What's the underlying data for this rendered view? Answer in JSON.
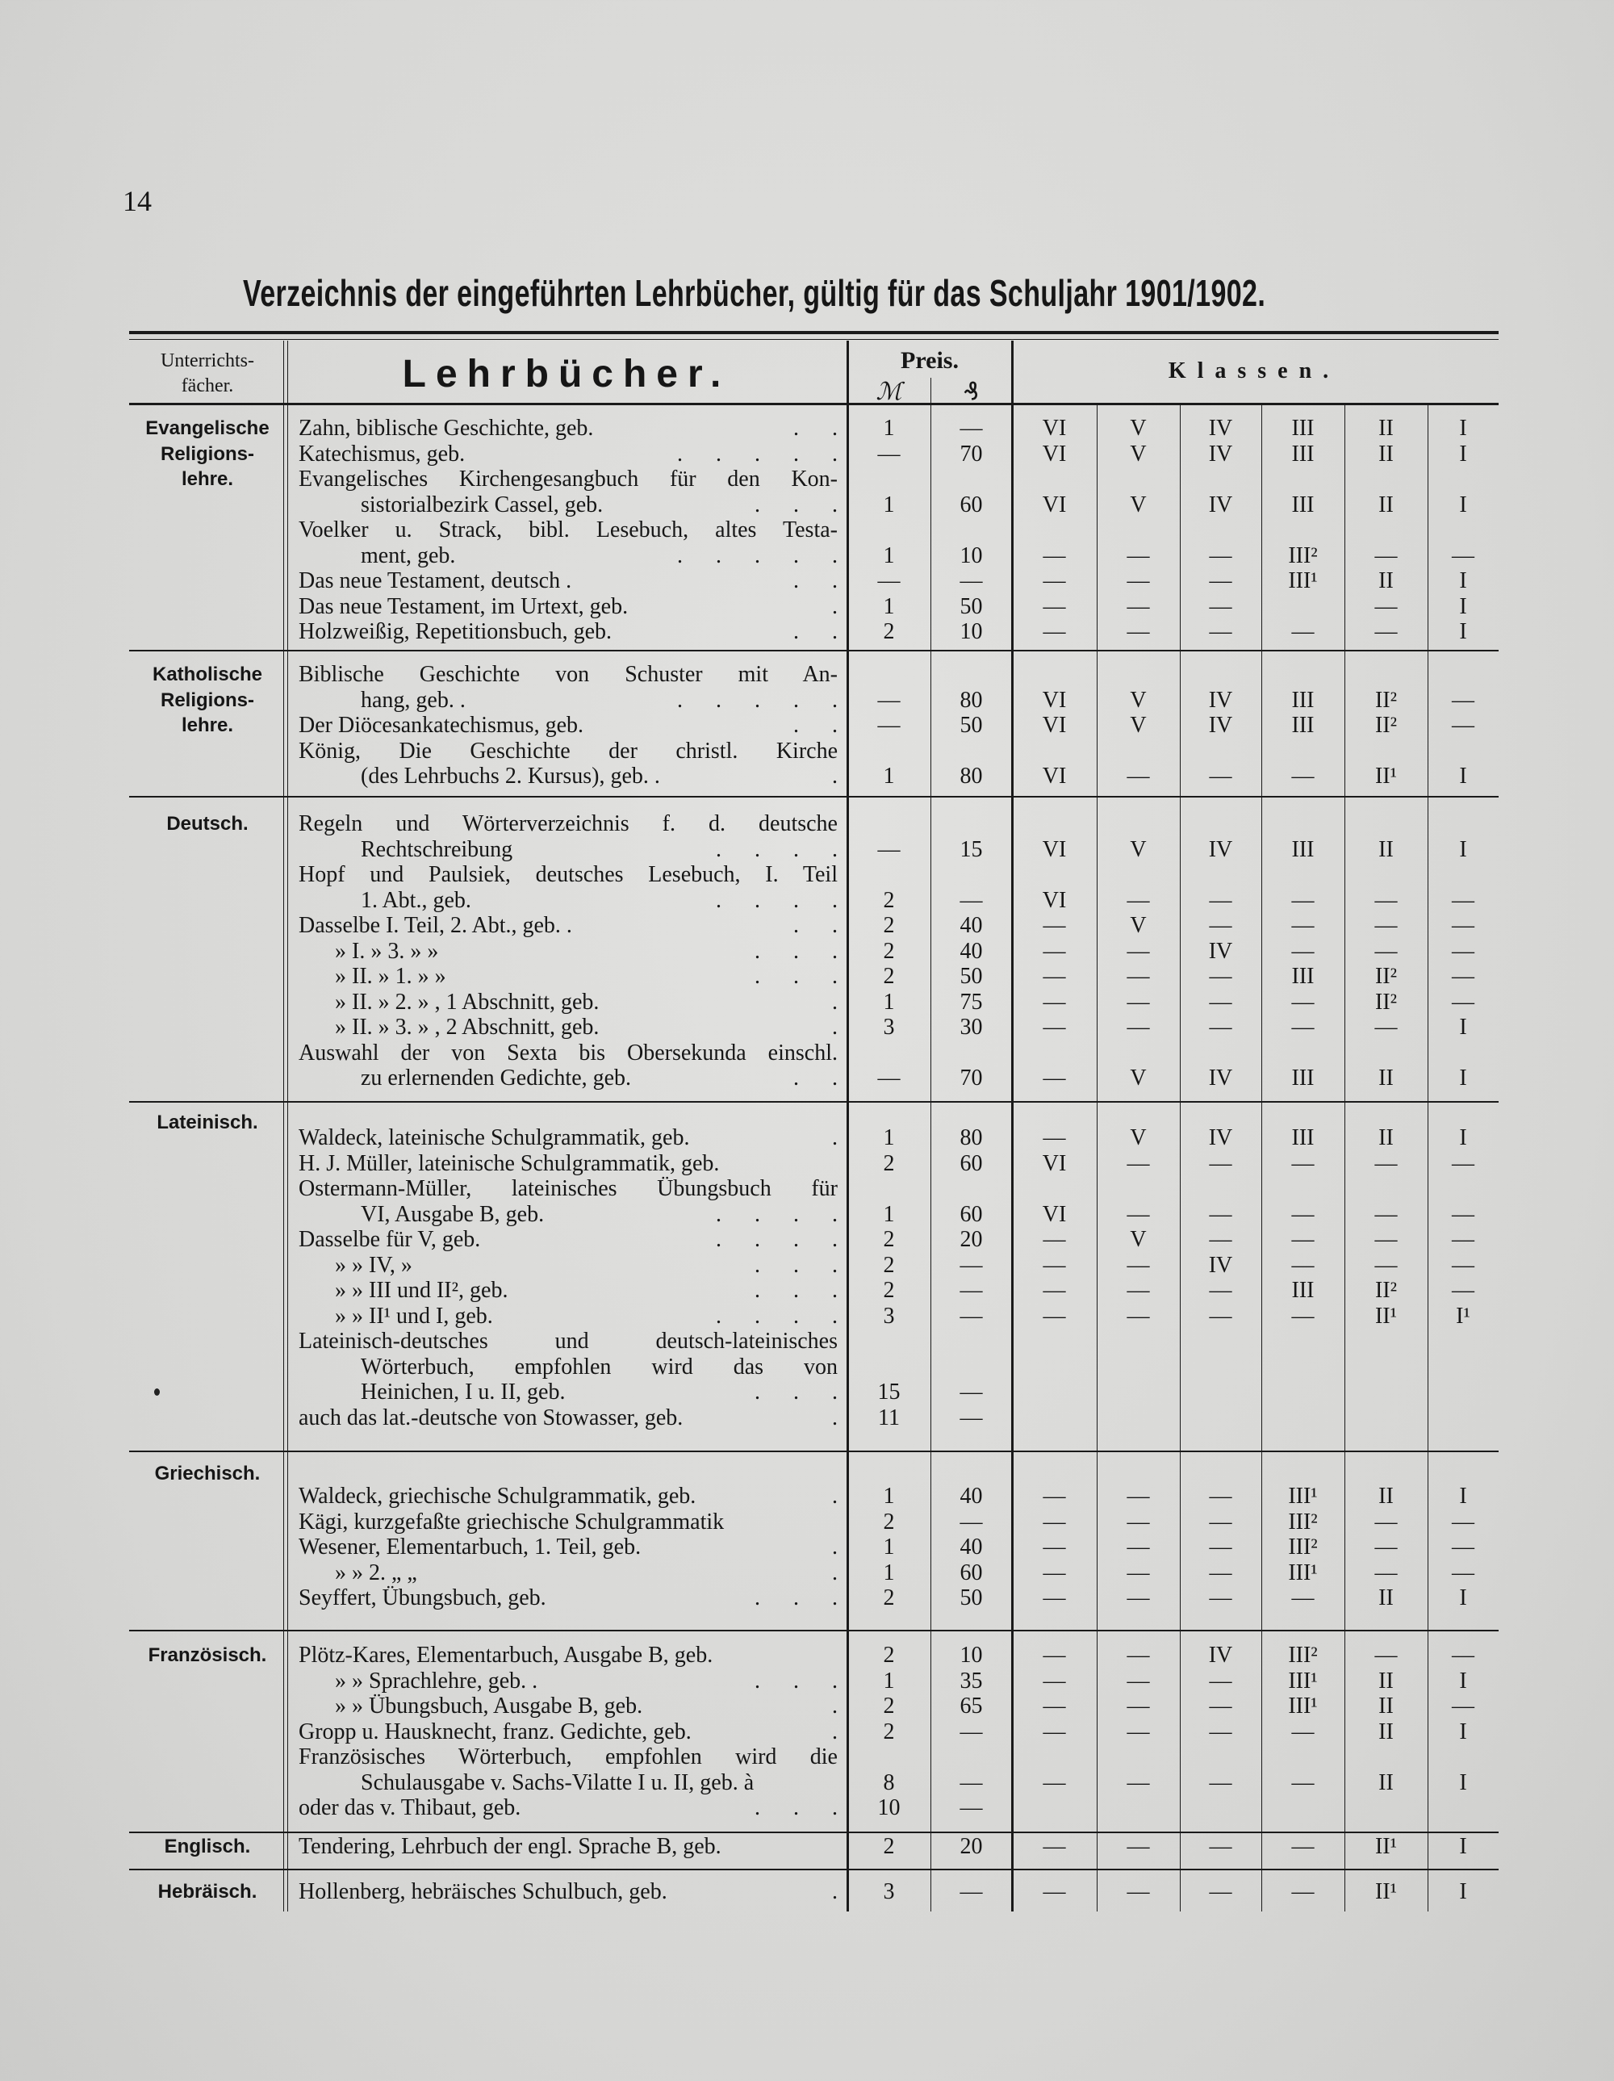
{
  "page_number": "14",
  "title": "Verzeichnis der eingeführten Lehrbücher, gültig für das Schuljahr 1901/1902.",
  "header": {
    "subject_label": [
      "Unterrichts-",
      "fächer."
    ],
    "books_label": "Lehrbücher.",
    "price_label": "Preis.",
    "mark_symbol": "ℳ",
    "pfennig_symbol": "₰",
    "classes_label": "Klassen."
  },
  "class_columns": [
    "VI",
    "V",
    "IV",
    "III",
    "II",
    "I"
  ],
  "sections": [
    {
      "subject": [
        "Evangelische",
        "Religions-",
        "lehre."
      ],
      "entries": [
        {
          "lines": [
            "Zahn, biblische Geschichte, geb."
          ],
          "leader": ". .",
          "mark": "1",
          "pf": "—",
          "classes": [
            "VI",
            "V",
            "IV",
            "III",
            "II",
            "I"
          ]
        },
        {
          "lines": [
            "Katechismus, geb."
          ],
          "leader": ". . . . .",
          "mark": "—",
          "pf": "70",
          "classes": [
            "VI",
            "V",
            "IV",
            "III",
            "II",
            "I"
          ]
        },
        {
          "lines": [
            "Evangelisches Kirchengesangbuch für den Kon-",
            "sistorialbezirk Cassel, geb."
          ],
          "leader": ". . .",
          "mark": "1",
          "pf": "60",
          "classes": [
            "VI",
            "V",
            "IV",
            "III",
            "II",
            "I"
          ]
        },
        {
          "lines": [
            "Voelker u. Strack, bibl. Lesebuch, altes Testa-",
            "ment, geb."
          ],
          "leader": ". . . . .",
          "mark": "1",
          "pf": "10",
          "classes": [
            "—",
            "—",
            "—",
            "III²",
            "—",
            "—"
          ]
        },
        {
          "lines": [
            "Das neue Testament, deutsch ."
          ],
          "leader": ". .",
          "mark": "—",
          "pf": "—",
          "classes": [
            "—",
            "—",
            "—",
            "III¹",
            "II",
            "I"
          ]
        },
        {
          "lines": [
            "Das neue Testament, im Urtext, geb."
          ],
          "leader": ".",
          "mark": "1",
          "pf": "50",
          "classes": [
            "—",
            "—",
            "—",
            "",
            "—",
            "I"
          ]
        },
        {
          "lines": [
            "Holzweißig, Repetitionsbuch, geb."
          ],
          "leader": ". .",
          "mark": "2",
          "pf": "10",
          "classes": [
            "—",
            "—",
            "—",
            "—",
            "—",
            "I"
          ]
        }
      ]
    },
    {
      "subject": [
        "Katholische",
        "Religions-",
        "lehre."
      ],
      "entries": [
        {
          "lines": [
            "Biblische Geschichte von Schuster mit An-",
            "hang, geb. ."
          ],
          "leader": ". . . . .",
          "mark": "—",
          "pf": "80",
          "classes": [
            "VI",
            "V",
            "IV",
            "III",
            "II²",
            "—"
          ]
        },
        {
          "lines": [
            "Der Diöcesankatechismus, geb."
          ],
          "leader": ". .",
          "mark": "—",
          "pf": "50",
          "classes": [
            "VI",
            "V",
            "IV",
            "III",
            "II²",
            "—"
          ]
        },
        {
          "lines": [
            "König, Die Geschichte der christl. Kirche",
            "(des Lehrbuchs 2. Kursus), geb. ."
          ],
          "leader": ".",
          "mark": "1",
          "pf": "80",
          "classes": [
            "VI",
            "—",
            "—",
            "—",
            "II¹",
            "I"
          ]
        }
      ]
    },
    {
      "subject": [
        "Deutsch."
      ],
      "entries": [
        {
          "lines": [
            "Regeln und Wörterverzeichnis f. d. deutsche",
            "Rechtschreibung"
          ],
          "leader": ". . . .",
          "mark": "—",
          "pf": "15",
          "classes": [
            "VI",
            "V",
            "IV",
            "III",
            "II",
            "I"
          ]
        },
        {
          "lines": [
            "Hopf und Paulsiek, deutsches Lesebuch, I. Teil",
            "1. Abt., geb."
          ],
          "leader": ". . . .",
          "mark": "2",
          "pf": "—",
          "classes": [
            "VI",
            "—",
            "—",
            "—",
            "—",
            "—"
          ]
        },
        {
          "lines": [
            "Dasselbe I. Teil, 2. Abt., geb. ."
          ],
          "leader": ". .",
          "mark": "2",
          "pf": "40",
          "classes": [
            "—",
            "V",
            "—",
            "—",
            "—",
            "—"
          ]
        },
        {
          "lines": [
            "»    I.   »   3.   »    »"
          ],
          "leader": ". . .",
          "mark": "2",
          "pf": "40",
          "classes": [
            "—",
            "—",
            "IV",
            "—",
            "—",
            "—"
          ]
        },
        {
          "lines": [
            "»    II.   »   1.   »    »"
          ],
          "leader": ". . .",
          "mark": "2",
          "pf": "50",
          "classes": [
            "—",
            "—",
            "—",
            "III",
            "II²",
            "—"
          ]
        },
        {
          "lines": [
            "»    II.   »   2.   » , 1 Abschnitt, geb."
          ],
          "leader": ".",
          "mark": "1",
          "pf": "75",
          "classes": [
            "—",
            "—",
            "—",
            "—",
            "II²",
            "—"
          ]
        },
        {
          "lines": [
            "»    II.   »   3.   » , 2 Abschnitt, geb."
          ],
          "leader": ".",
          "mark": "3",
          "pf": "30",
          "classes": [
            "—",
            "—",
            "—",
            "—",
            "—",
            "I"
          ]
        },
        {
          "lines": [
            "Auswahl der von Sexta bis Obersekunda einschl.",
            "zu erlernenden Gedichte, geb."
          ],
          "leader": ". .",
          "mark": "—",
          "pf": "70",
          "classes": [
            "—",
            "V",
            "IV",
            "III",
            "II",
            "I"
          ]
        }
      ]
    },
    {
      "subject": [
        "Lateinisch."
      ],
      "entries": [
        {
          "lines": [
            "Waldeck, lateinische Schulgrammatik, geb."
          ],
          "leader": ".",
          "mark": "1",
          "pf": "80",
          "classes": [
            "—",
            "V",
            "IV",
            "III",
            "II",
            "I"
          ]
        },
        {
          "lines": [
            "H. J. Müller, lateinische Schulgrammatik, geb."
          ],
          "leader": "",
          "mark": "2",
          "pf": "60",
          "classes": [
            "VI",
            "—",
            "—",
            "—",
            "—",
            "—"
          ]
        },
        {
          "lines": [
            "Ostermann-Müller, lateinisches Übungsbuch für",
            "VI, Ausgabe B, geb."
          ],
          "leader": ". . . .",
          "mark": "1",
          "pf": "60",
          "classes": [
            "VI",
            "—",
            "—",
            "—",
            "—",
            "—"
          ]
        },
        {
          "lines": [
            "Dasselbe für V, geb."
          ],
          "leader": ". . . .",
          "mark": "2",
          "pf": "20",
          "classes": [
            "—",
            "V",
            "—",
            "—",
            "—",
            "—"
          ]
        },
        {
          "lines": [
            "»       » IV,   »"
          ],
          "leader": ". . .",
          "mark": "2",
          "pf": "—",
          "classes": [
            "—",
            "—",
            "IV",
            "—",
            "—",
            "—"
          ]
        },
        {
          "lines": [
            "»       » III und II², geb."
          ],
          "leader": ". . .",
          "mark": "2",
          "pf": "—",
          "classes": [
            "—",
            "—",
            "—",
            "III",
            "II²",
            "—"
          ]
        },
        {
          "lines": [
            "»       » II¹ und I, geb."
          ],
          "leader": ". . . .",
          "mark": "3",
          "pf": "—",
          "classes": [
            "—",
            "—",
            "—",
            "—",
            "II¹",
            "I¹"
          ]
        },
        {
          "lines": [
            "Lateinisch-deutsches und deutsch-lateinisches",
            "Wörterbuch, empfohlen wird das von",
            "Heinichen, I u. II, geb."
          ],
          "leader": ". . .",
          "mark": "15",
          "pf": "—",
          "classes": [
            "",
            "",
            "",
            "",
            "",
            ""
          ]
        },
        {
          "lines": [
            "auch das lat.-deutsche von Stowasser, geb."
          ],
          "leader": ".",
          "mark": "11",
          "pf": "—",
          "classes": [
            "",
            "",
            "",
            "",
            "",
            ""
          ]
        }
      ]
    },
    {
      "subject": [
        "Griechisch."
      ],
      "entries": [
        {
          "lines": [
            "Waldeck, griechische Schulgrammatik, geb."
          ],
          "leader": ".",
          "mark": "1",
          "pf": "40",
          "classes": [
            "—",
            "—",
            "—",
            "III¹",
            "II",
            "I"
          ]
        },
        {
          "lines": [
            "Kägi, kurzgefaßte griechische Schulgrammatik"
          ],
          "leader": "",
          "mark": "2",
          "pf": "—",
          "classes": [
            "—",
            "—",
            "—",
            "III²",
            "—",
            "—"
          ]
        },
        {
          "lines": [
            "Wesener, Elementarbuch, 1. Teil, geb."
          ],
          "leader": ".",
          "mark": "1",
          "pf": "40",
          "classes": [
            "—",
            "—",
            "—",
            "III²",
            "—",
            "—"
          ]
        },
        {
          "lines": [
            "»             »            2.    „     „"
          ],
          "leader": ".",
          "mark": "1",
          "pf": "60",
          "classes": [
            "—",
            "—",
            "—",
            "III¹",
            "—",
            "—"
          ]
        },
        {
          "lines": [
            "Seyffert, Übungsbuch, geb."
          ],
          "leader": ". . .",
          "mark": "2",
          "pf": "50",
          "classes": [
            "—",
            "—",
            "—",
            "—",
            "II",
            "I"
          ]
        }
      ]
    },
    {
      "subject": [
        "Französisch."
      ],
      "entries": [
        {
          "lines": [
            "Plötz-Kares, Elementarbuch, Ausgabe B, geb."
          ],
          "leader": "",
          "mark": "2",
          "pf": "10",
          "classes": [
            "—",
            "—",
            "IV",
            "III²",
            "—",
            "—"
          ]
        },
        {
          "lines": [
            "»     »     Sprachlehre, geb. ."
          ],
          "leader": ". . .",
          "mark": "1",
          "pf": "35",
          "classes": [
            "—",
            "—",
            "—",
            "III¹",
            "II",
            "I"
          ]
        },
        {
          "lines": [
            "»     »     Übungsbuch, Ausgabe B, geb."
          ],
          "leader": ".",
          "mark": "2",
          "pf": "65",
          "classes": [
            "—",
            "—",
            "—",
            "III¹",
            "II",
            "—"
          ]
        },
        {
          "lines": [
            "Gropp u. Hausknecht, franz. Gedichte, geb."
          ],
          "leader": ".",
          "mark": "2",
          "pf": "—",
          "classes": [
            "—",
            "—",
            "—",
            "—",
            "II",
            "I"
          ]
        },
        {
          "lines": [
            "Französisches Wörterbuch, empfohlen wird die",
            "Schulausgabe v. Sachs-Vilatte I u. II, geb. à"
          ],
          "leader": "",
          "mark": "8",
          "pf": "—",
          "classes": [
            "—",
            "—",
            "—",
            "—",
            "II",
            "I"
          ]
        },
        {
          "lines": [
            "oder das v. Thibaut, geb."
          ],
          "leader": ". . .",
          "mark": "10",
          "pf": "—",
          "classes": [
            "",
            "",
            "",
            "",
            "",
            ""
          ]
        }
      ]
    },
    {
      "subject": [
        "Englisch."
      ],
      "entries": [
        {
          "lines": [
            "Tendering, Lehrbuch der engl. Sprache B, geb."
          ],
          "leader": "",
          "mark": "2",
          "pf": "20",
          "classes": [
            "—",
            "—",
            "—",
            "—",
            "II¹",
            "I"
          ]
        }
      ]
    },
    {
      "subject": [
        "Hebräisch."
      ],
      "entries": [
        {
          "lines": [
            "Hollenberg, hebräisches Schulbuch, geb."
          ],
          "leader": ".",
          "mark": "3",
          "pf": "—",
          "classes": [
            "—",
            "—",
            "—",
            "—",
            "II¹",
            "I"
          ]
        }
      ]
    }
  ]
}
